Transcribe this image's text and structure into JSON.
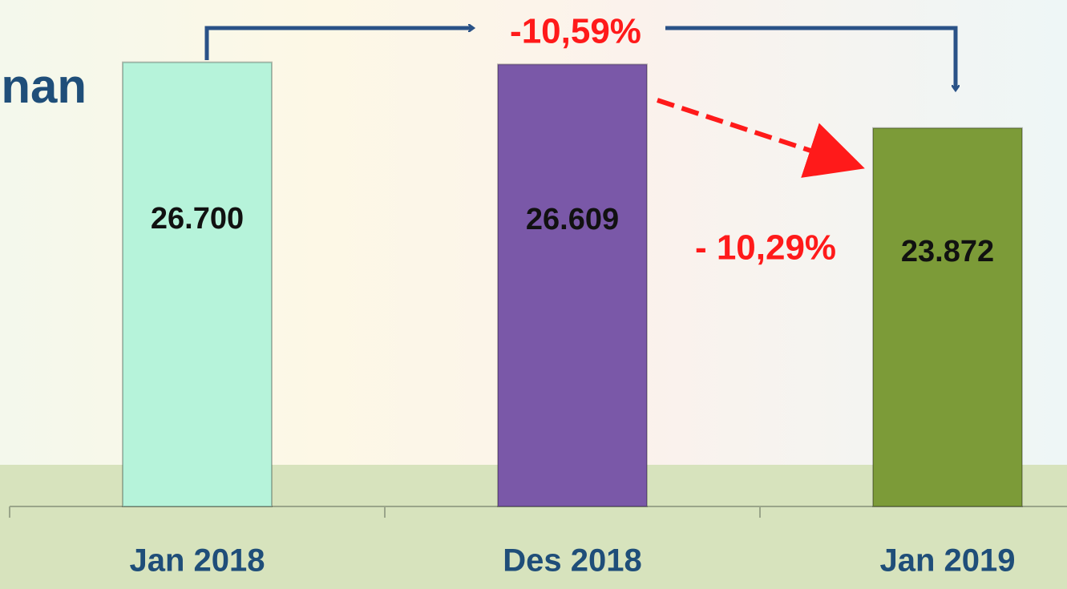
{
  "chart_data": {
    "type": "bar",
    "title": "nan",
    "categories": [
      "Jan 2018",
      "Des 2018",
      "Jan 2019"
    ],
    "values": [
      26700,
      26609,
      23872
    ],
    "value_labels": [
      "26.700",
      "26.609",
      "23.872"
    ],
    "colors": [
      "#b6f3da",
      "#7a58a8",
      "#7c9b38"
    ],
    "ylim": [
      7600,
      27000
    ],
    "annotations": [
      "-10,59%",
      "- 10,29%"
    ]
  }
}
